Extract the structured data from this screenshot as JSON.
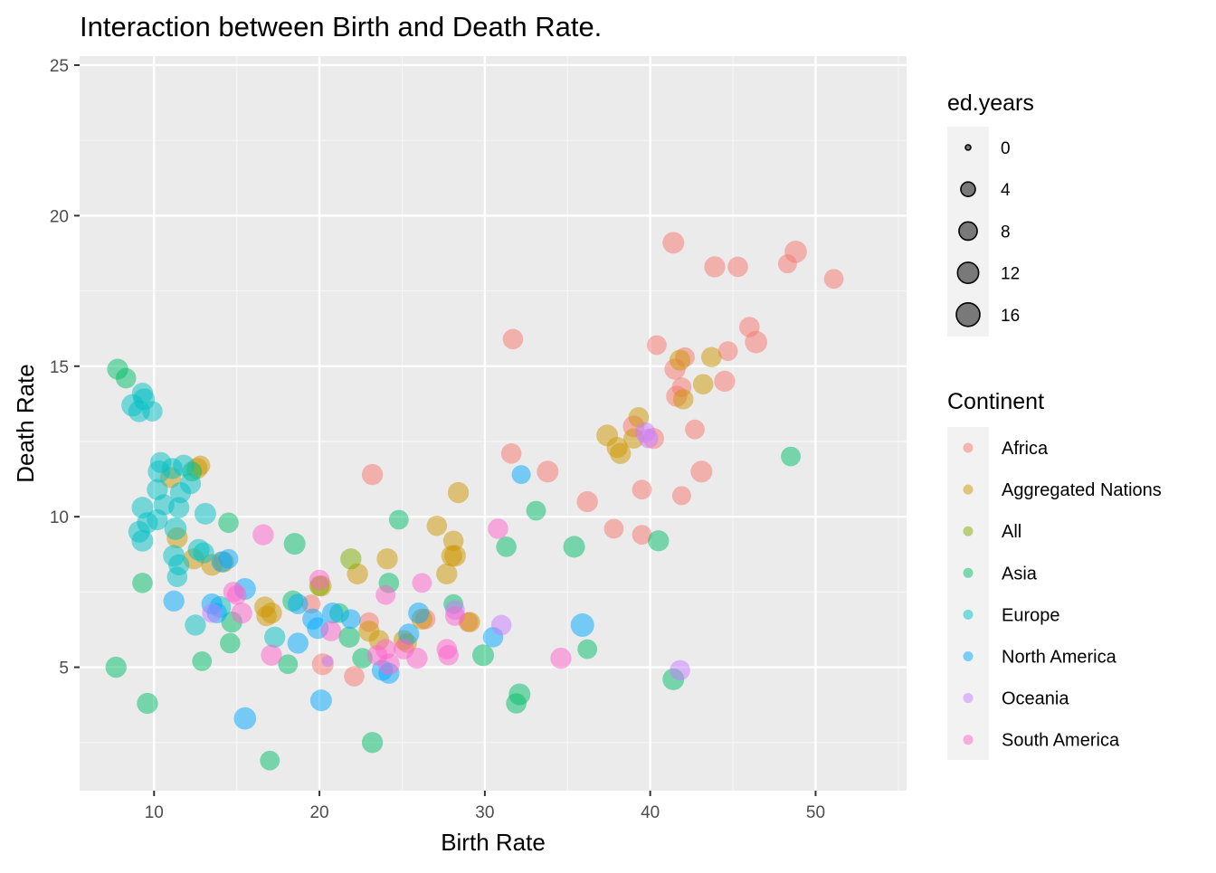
{
  "chart_data": {
    "type": "scatter",
    "title": "Interaction between Birth and Death Rate.",
    "xlabel": "Birth Rate",
    "ylabel": "Death Rate",
    "xlim": [
      5.5,
      55.5
    ],
    "ylim": [
      0.9,
      25.3
    ],
    "x_ticks": [
      10,
      20,
      30,
      40,
      50
    ],
    "y_ticks": [
      5,
      10,
      15,
      20,
      25
    ],
    "grid": true,
    "size_legend": {
      "title": "ed.years",
      "values": [
        0,
        4,
        8,
        12,
        16
      ]
    },
    "color_legend": {
      "title": "Continent",
      "items": [
        {
          "name": "Africa",
          "color": "#F8766D"
        },
        {
          "name": "Aggregated Nations",
          "color": "#CD9600"
        },
        {
          "name": "All",
          "color": "#7CAE00"
        },
        {
          "name": "Asia",
          "color": "#00BE67"
        },
        {
          "name": "Europe",
          "color": "#00BFC4"
        },
        {
          "name": "North America",
          "color": "#00A9FF"
        },
        {
          "name": "Oceania",
          "color": "#C77CFF"
        },
        {
          "name": "South America",
          "color": "#FF61CC"
        }
      ]
    },
    "series": [
      {
        "name": "Africa",
        "points": [
          [
            41.4,
            19.1,
            13
          ],
          [
            43.9,
            18.3,
            12
          ],
          [
            45.3,
            18.3,
            11
          ],
          [
            48.3,
            18.4,
            9
          ],
          [
            48.8,
            18.8,
            14
          ],
          [
            51.1,
            17.9,
            10
          ],
          [
            31.7,
            15.9,
            11
          ],
          [
            40.4,
            15.7,
            10
          ],
          [
            42.1,
            15.3,
            10
          ],
          [
            41.5,
            14.9,
            12
          ],
          [
            44.7,
            15.5,
            10
          ],
          [
            46.0,
            16.3,
            11
          ],
          [
            46.4,
            15.8,
            14
          ],
          [
            41.6,
            14.0,
            12
          ],
          [
            41.9,
            14.3,
            10
          ],
          [
            44.5,
            14.5,
            12
          ],
          [
            39.0,
            13.0,
            13
          ],
          [
            40.2,
            12.6,
            12
          ],
          [
            42.7,
            12.9,
            10
          ],
          [
            31.6,
            12.1,
            11
          ],
          [
            33.8,
            11.5,
            13
          ],
          [
            43.1,
            11.5,
            13
          ],
          [
            39.5,
            10.9,
            10
          ],
          [
            41.9,
            10.7,
            9
          ],
          [
            23.2,
            11.4,
            12
          ],
          [
            36.2,
            10.5,
            12
          ],
          [
            37.8,
            9.6,
            10
          ],
          [
            39.5,
            9.4,
            10
          ],
          [
            20.2,
            5.1,
            13
          ],
          [
            22.1,
            4.7,
            11
          ],
          [
            23.0,
            6.5,
            10
          ],
          [
            26.4,
            6.6,
            11
          ],
          [
            29.0,
            6.5,
            10
          ],
          [
            19.5,
            7.1,
            9
          ]
        ]
      },
      {
        "name": "Aggregated Nations",
        "points": [
          [
            37.4,
            12.7,
            13
          ],
          [
            38.0,
            12.3,
            12
          ],
          [
            38.2,
            12.1,
            12
          ],
          [
            39.3,
            13.3,
            11
          ],
          [
            39.0,
            12.6,
            11
          ],
          [
            41.8,
            15.2,
            12
          ],
          [
            42.0,
            13.9,
            11
          ],
          [
            43.2,
            14.4,
            11
          ],
          [
            43.7,
            15.3,
            11
          ],
          [
            12.6,
            11.6,
            12
          ],
          [
            12.8,
            11.7,
            10
          ],
          [
            11.0,
            11.3,
            12
          ],
          [
            11.4,
            9.3,
            12
          ],
          [
            12.4,
            8.6,
            12
          ],
          [
            13.5,
            8.4,
            13
          ],
          [
            14.2,
            8.5,
            12
          ],
          [
            16.7,
            7.0,
            12
          ],
          [
            17.1,
            6.8,
            12
          ],
          [
            16.8,
            6.7,
            11
          ],
          [
            20.1,
            7.7,
            12
          ],
          [
            22.3,
            8.1,
            12
          ],
          [
            23.0,
            6.2,
            12
          ],
          [
            23.6,
            5.9,
            11
          ],
          [
            24.1,
            8.6,
            12
          ],
          [
            25.1,
            5.9,
            11
          ],
          [
            25.3,
            5.8,
            10
          ],
          [
            26.2,
            6.6,
            12
          ],
          [
            27.1,
            9.7,
            11
          ],
          [
            27.7,
            8.1,
            12
          ],
          [
            28.0,
            8.7,
            12
          ],
          [
            28.2,
            8.7,
            13
          ],
          [
            28.1,
            9.2,
            11
          ],
          [
            28.4,
            10.8,
            12
          ],
          [
            29.1,
            6.5,
            11
          ]
        ]
      },
      {
        "name": "All",
        "points": [
          [
            21.9,
            8.6,
            12
          ],
          [
            20.0,
            7.7,
            11
          ]
        ]
      },
      {
        "name": "Asia",
        "points": [
          [
            7.8,
            14.9,
            12
          ],
          [
            8.3,
            14.6,
            11
          ],
          [
            12.3,
            11.5,
            10
          ],
          [
            14.5,
            9.8,
            11
          ],
          [
            18.5,
            9.1,
            13
          ],
          [
            24.8,
            9.9,
            10
          ],
          [
            33.1,
            10.2,
            10
          ],
          [
            31.3,
            9.0,
            11
          ],
          [
            35.4,
            9.0,
            13
          ],
          [
            40.5,
            9.2,
            12
          ],
          [
            48.5,
            12.0,
            10
          ],
          [
            9.3,
            7.8,
            11
          ],
          [
            7.7,
            5.0,
            12
          ],
          [
            9.6,
            3.8,
            12
          ],
          [
            12.9,
            5.2,
            10
          ],
          [
            14.6,
            5.8,
            11
          ],
          [
            14.7,
            6.5,
            12
          ],
          [
            17.0,
            1.9,
            10
          ],
          [
            18.1,
            5.1,
            10
          ],
          [
            18.4,
            7.2,
            12
          ],
          [
            21.2,
            6.8,
            10
          ],
          [
            21.8,
            6.0,
            12
          ],
          [
            22.6,
            5.3,
            11
          ],
          [
            23.2,
            2.5,
            12
          ],
          [
            24.2,
            7.8,
            11
          ],
          [
            28.1,
            7.1,
            10
          ],
          [
            29.9,
            5.4,
            13
          ],
          [
            31.9,
            3.8,
            11
          ],
          [
            32.1,
            4.1,
            13
          ],
          [
            36.2,
            5.6,
            10
          ],
          [
            41.4,
            4.6,
            13
          ]
        ]
      },
      {
        "name": "Europe",
        "points": [
          [
            8.7,
            13.7,
            14
          ],
          [
            9.1,
            13.5,
            13
          ],
          [
            9.3,
            14.1,
            12
          ],
          [
            9.4,
            13.9,
            13
          ],
          [
            9.9,
            13.5,
            11
          ],
          [
            10.3,
            11.5,
            14
          ],
          [
            10.4,
            11.8,
            12
          ],
          [
            11.1,
            11.6,
            12
          ],
          [
            11.8,
            11.7,
            13
          ],
          [
            12.2,
            11.1,
            12
          ],
          [
            10.2,
            10.9,
            12
          ],
          [
            10.6,
            10.4,
            12
          ],
          [
            11.6,
            10.8,
            12
          ],
          [
            9.1,
            9.5,
            13
          ],
          [
            9.3,
            10.3,
            13
          ],
          [
            9.6,
            9.8,
            12
          ],
          [
            9.3,
            9.2,
            13
          ],
          [
            10.2,
            9.9,
            12
          ],
          [
            11.3,
            9.6,
            14
          ],
          [
            11.5,
            10.3,
            12
          ],
          [
            13.1,
            10.1,
            13
          ],
          [
            11.2,
            8.7,
            13
          ],
          [
            11.5,
            8.4,
            12
          ],
          [
            12.7,
            8.9,
            13
          ],
          [
            13.0,
            8.8,
            12
          ],
          [
            11.4,
            8.0,
            11
          ],
          [
            12.5,
            6.4,
            12
          ],
          [
            14.0,
            7.0,
            13
          ],
          [
            17.3,
            6.0,
            12
          ]
        ]
      },
      {
        "name": "North America",
        "points": [
          [
            32.2,
            11.4,
            9
          ],
          [
            14.5,
            8.6,
            10
          ],
          [
            14.1,
            8.5,
            12
          ],
          [
            15.5,
            7.6,
            13
          ],
          [
            13.5,
            7.1,
            12
          ],
          [
            11.2,
            7.2,
            12
          ],
          [
            13.8,
            6.8,
            11
          ],
          [
            19.6,
            6.6,
            12
          ],
          [
            19.9,
            6.3,
            13
          ],
          [
            20.8,
            6.8,
            12
          ],
          [
            21.9,
            6.6,
            10
          ],
          [
            18.7,
            5.8,
            12
          ],
          [
            18.7,
            7.1,
            11
          ],
          [
            20.1,
            3.9,
            13
          ],
          [
            15.5,
            3.3,
            14
          ],
          [
            23.8,
            4.9,
            12
          ],
          [
            24.2,
            4.8,
            12
          ],
          [
            25.4,
            6.1,
            12
          ],
          [
            26.0,
            6.8,
            12
          ],
          [
            30.5,
            6.0,
            11
          ],
          [
            35.9,
            6.4,
            16
          ]
        ]
      },
      {
        "name": "Oceania",
        "points": [
          [
            39.7,
            12.8,
            11
          ],
          [
            39.9,
            12.6,
            10
          ],
          [
            31.0,
            6.4,
            11
          ],
          [
            41.8,
            4.9,
            11
          ],
          [
            28.2,
            6.9,
            10
          ],
          [
            20.5,
            5.2,
            2
          ],
          [
            13.5,
            6.8,
            10
          ]
        ]
      },
      {
        "name": "South America",
        "points": [
          [
            16.6,
            9.4,
            12
          ],
          [
            14.8,
            7.5,
            11
          ],
          [
            15.0,
            7.4,
            10
          ],
          [
            15.3,
            6.8,
            12
          ],
          [
            17.1,
            5.4,
            12
          ],
          [
            20.0,
            7.9,
            11
          ],
          [
            20.7,
            6.2,
            11
          ],
          [
            24.0,
            7.4,
            10
          ],
          [
            24.2,
            5.1,
            13
          ],
          [
            24.0,
            5.6,
            11
          ],
          [
            23.5,
            5.4,
            11
          ],
          [
            25.1,
            5.6,
            11
          ],
          [
            25.9,
            5.3,
            12
          ],
          [
            26.2,
            7.8,
            10
          ],
          [
            27.7,
            5.6,
            11
          ],
          [
            27.8,
            5.4,
            11
          ],
          [
            28.2,
            6.7,
            10
          ],
          [
            30.8,
            9.6,
            11
          ],
          [
            34.6,
            5.3,
            12
          ]
        ]
      }
    ]
  }
}
